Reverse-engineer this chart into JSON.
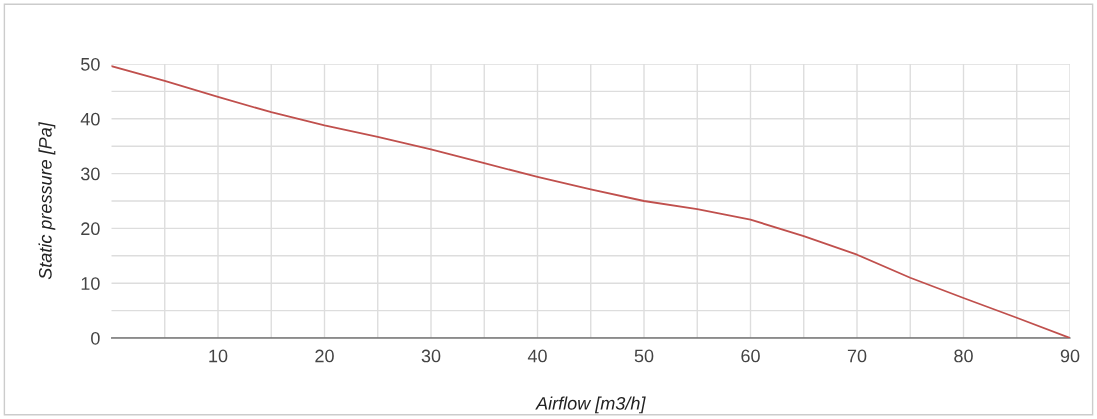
{
  "chart_data": {
    "type": "line",
    "xlabel": "Airflow [m3/h]",
    "ylabel": "Static pressure [Pa]",
    "x": [
      0,
      5,
      10,
      15,
      20,
      25,
      30,
      35,
      40,
      45,
      50,
      55,
      60,
      65,
      70,
      75,
      80,
      85,
      90
    ],
    "series": [
      {
        "color": "#c0504d",
        "values": [
          49.6,
          46.9,
          44,
          41.2,
          38.8,
          36.7,
          34.4,
          31.9,
          29.4,
          27.1,
          25,
          23.5,
          21.6,
          18.6,
          15.2,
          11,
          7.3,
          3.7,
          0
        ]
      }
    ],
    "xlim": [
      0,
      90
    ],
    "xticks": [
      {
        "value": 5,
        "label": null
      },
      10,
      {
        "value": 15,
        "label": null
      },
      20,
      {
        "value": 25,
        "label": null
      },
      30,
      {
        "value": 35,
        "label": null
      },
      40,
      {
        "value": 45,
        "label": null
      },
      50,
      {
        "value": 55,
        "label": null
      },
      60,
      {
        "value": 65,
        "label": null
      },
      70,
      {
        "value": 75,
        "label": null
      },
      80,
      {
        "value": 85,
        "label": null
      },
      90
    ],
    "ylim": [
      0,
      50
    ],
    "yticks": [
      0,
      {
        "value": 5,
        "label": null
      },
      10,
      {
        "value": 15,
        "label": null
      },
      20,
      {
        "value": 25,
        "label": null
      },
      30,
      {
        "value": 35,
        "label": null
      },
      40,
      {
        "value": 45,
        "label": null
      },
      50
    ],
    "grid": true,
    "legend": false,
    "marker": "none",
    "line_style": "solid"
  }
}
